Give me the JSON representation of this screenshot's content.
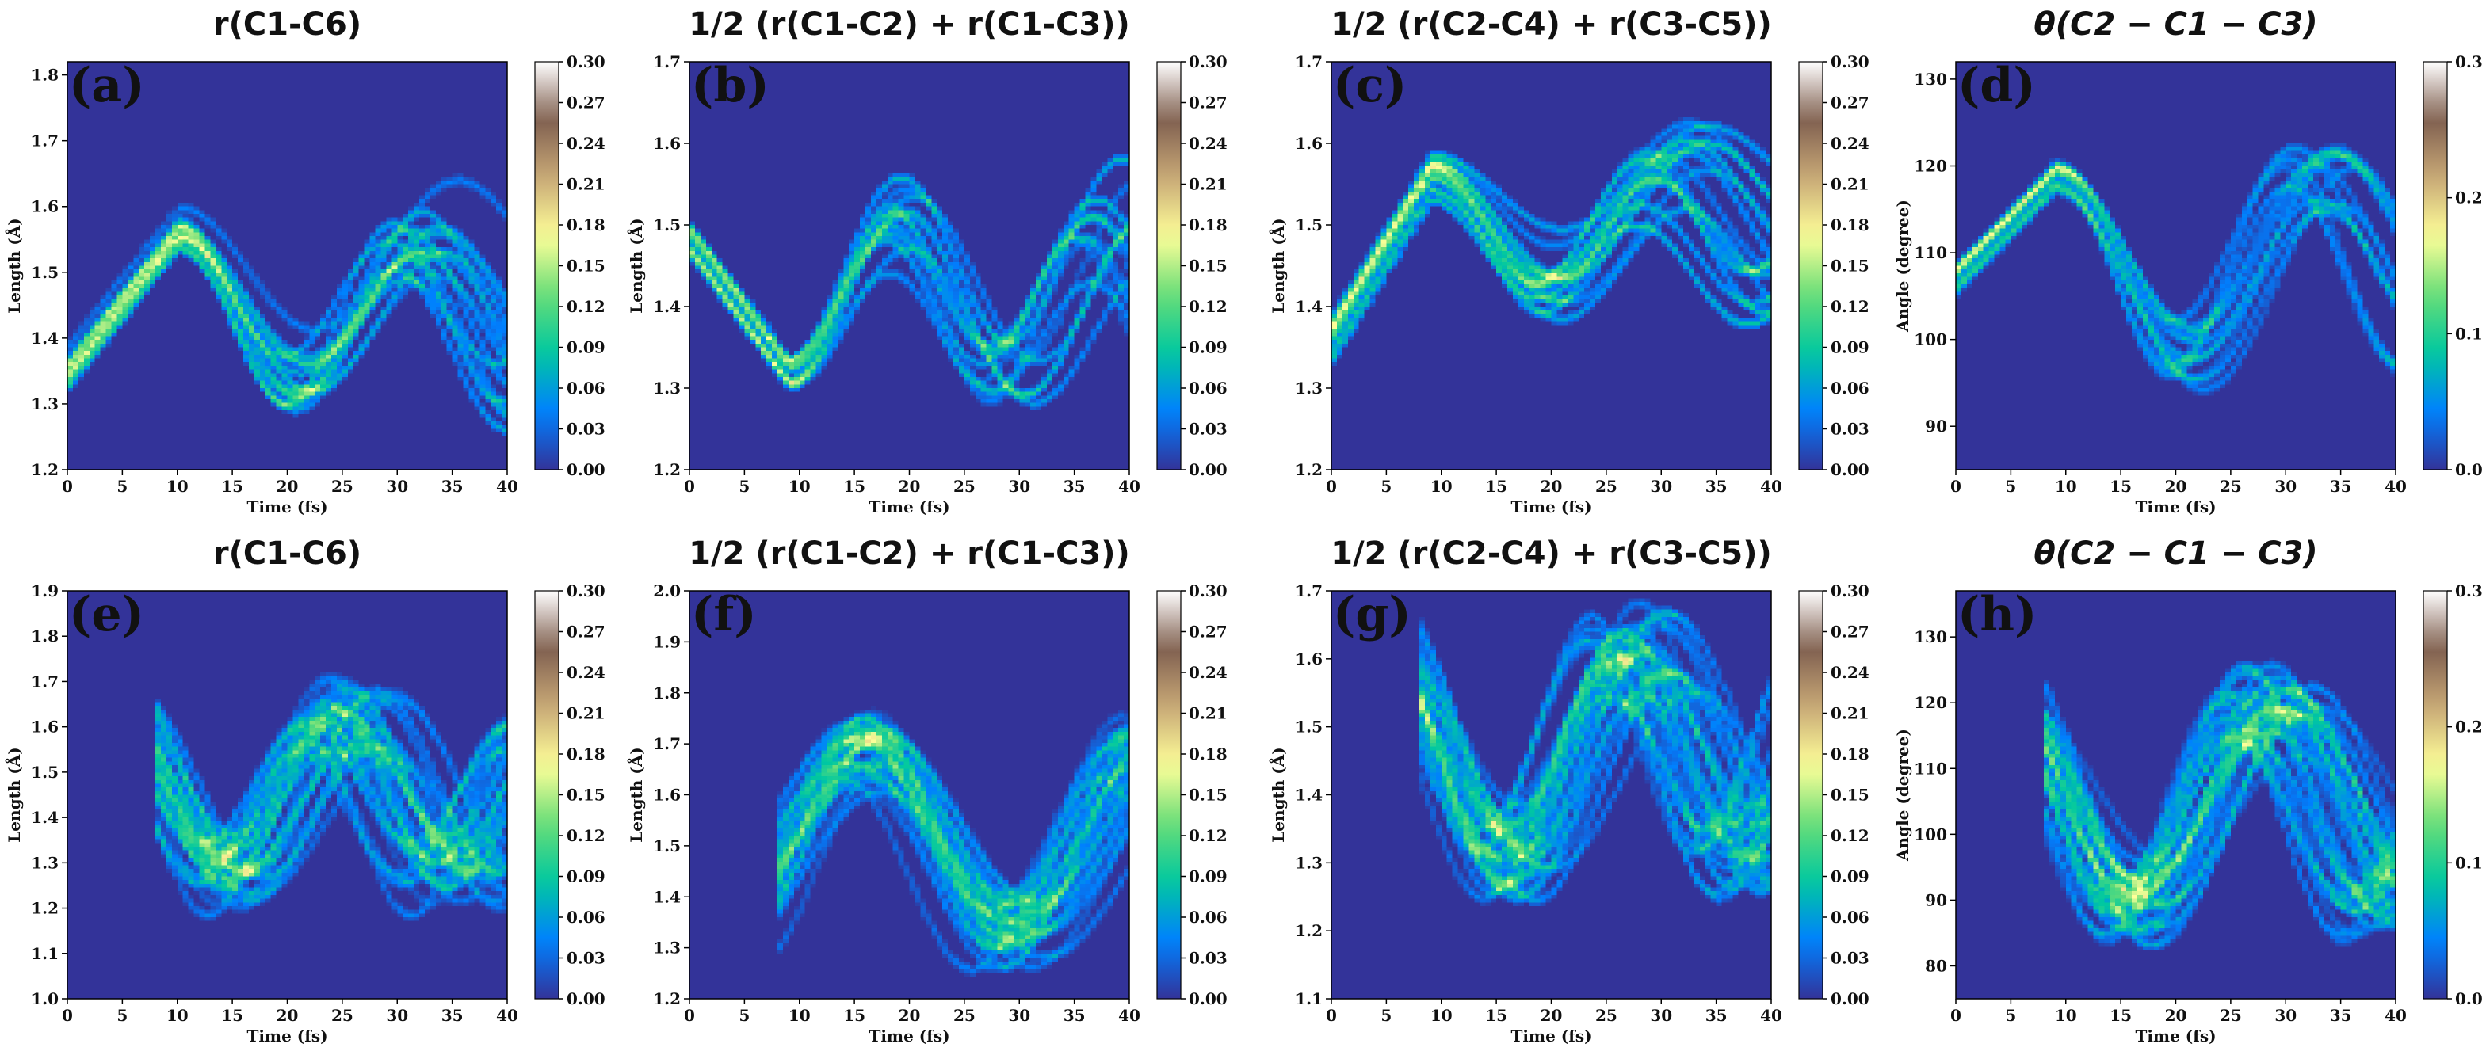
{
  "colormap": {
    "name": "terrain",
    "stops": [
      "#333399",
      "#0080ff",
      "#00c8a0",
      "#66dd77",
      "#ffff99",
      "#c9a977",
      "#806050",
      "#ffffff"
    ],
    "background": "#333399"
  },
  "chart_data": [
    {
      "id": "a",
      "type": "heatmap",
      "title": "r(C1-C6)",
      "label": "(a)",
      "xlabel": "Time (fs)",
      "ylabel": "Length (Å)",
      "xlim": [
        0,
        40
      ],
      "ylim": [
        1.2,
        1.82
      ],
      "xticks": [
        0,
        5,
        10,
        15,
        20,
        25,
        30,
        35,
        40
      ],
      "xtick_labels": [
        "0",
        "5",
        "10",
        "15",
        "20",
        "25",
        "30",
        "35",
        "40"
      ],
      "yticks": [
        1.2,
        1.3,
        1.4,
        1.5,
        1.6,
        1.7,
        1.8
      ],
      "ytick_labels": [
        "1.2",
        "1.3",
        "1.4",
        "1.5",
        "1.6",
        "1.7",
        "1.8"
      ],
      "colorbar": {
        "min": 0,
        "max": 0.3,
        "ticks": [
          0,
          0.03,
          0.06,
          0.09,
          0.12,
          0.15,
          0.18,
          0.21,
          0.24,
          0.27,
          0.3
        ],
        "tick_labels": [
          "0.00",
          "0.03",
          "0.06",
          "0.09",
          "0.12",
          "0.15",
          "0.18",
          "0.21",
          "0.24",
          "0.27",
          "0.30"
        ]
      },
      "gen": {
        "t0": 0,
        "n": 14,
        "base": 1.36,
        "spread": 0.09,
        "amp": 0.11,
        "period": 22,
        "phase": -5.5,
        "ramp": 0.021,
        "rampEnd": 10,
        "dens": 3.2
      }
    },
    {
      "id": "b",
      "type": "heatmap",
      "title": "1/2 (r(C1-C2) + r(C1-C3))",
      "label": "(b)",
      "xlabel": "Time (fs)",
      "ylabel": "Length (Å)",
      "xlim": [
        0,
        40
      ],
      "ylim": [
        1.2,
        1.7
      ],
      "xticks": [
        0,
        5,
        10,
        15,
        20,
        25,
        30,
        35,
        40
      ],
      "xtick_labels": [
        "0",
        "5",
        "10",
        "15",
        "20",
        "25",
        "30",
        "35",
        "40"
      ],
      "yticks": [
        1.2,
        1.3,
        1.4,
        1.5,
        1.6,
        1.7
      ],
      "ytick_labels": [
        "1.2",
        "1.3",
        "1.4",
        "1.5",
        "1.6",
        "1.7"
      ],
      "colorbar": {
        "min": 0,
        "max": 0.3,
        "ticks": [
          0,
          0.03,
          0.06,
          0.09,
          0.12,
          0.15,
          0.18,
          0.21,
          0.24,
          0.27,
          0.3
        ],
        "tick_labels": [
          "0.00",
          "0.03",
          "0.06",
          "0.09",
          "0.12",
          "0.15",
          "0.18",
          "0.21",
          "0.24",
          "0.27",
          "0.30"
        ]
      },
      "gen": {
        "t0": 0,
        "n": 14,
        "base": 1.48,
        "spread": 0.05,
        "amp": 0.09,
        "period": 20,
        "phase": 0,
        "ramp": -0.018,
        "rampEnd": 9,
        "dens": 4.5
      }
    },
    {
      "id": "c",
      "type": "heatmap",
      "title": "1/2 (r(C2-C4) + r(C3-C5))",
      "label": "(c)",
      "xlabel": "Time (fs)",
      "ylabel": "Length (Å)",
      "xlim": [
        0,
        40
      ],
      "ylim": [
        1.2,
        1.7
      ],
      "xticks": [
        0,
        5,
        10,
        15,
        20,
        25,
        30,
        35,
        40
      ],
      "xtick_labels": [
        "0",
        "5",
        "10",
        "15",
        "20",
        "25",
        "30",
        "35",
        "40"
      ],
      "yticks": [
        1.2,
        1.3,
        1.4,
        1.5,
        1.6,
        1.7
      ],
      "ytick_labels": [
        "1.2",
        "1.3",
        "1.4",
        "1.5",
        "1.6",
        "1.7"
      ],
      "colorbar": {
        "min": 0,
        "max": 0.3,
        "ticks": [
          0,
          0.03,
          0.06,
          0.09,
          0.12,
          0.15,
          0.18,
          0.21,
          0.24,
          0.27,
          0.3
        ],
        "tick_labels": [
          "0.00",
          "0.03",
          "0.06",
          "0.09",
          "0.12",
          "0.15",
          "0.18",
          "0.21",
          "0.24",
          "0.27",
          "0.30"
        ]
      },
      "gen": {
        "t0": 0,
        "n": 14,
        "base": 1.36,
        "spread": 0.07,
        "amp": 0.07,
        "period": 22,
        "phase": -5,
        "ramp": 0.022,
        "rampEnd": 9,
        "dens": 3.6
      }
    },
    {
      "id": "d",
      "type": "heatmap",
      "title": "θ(C2 − C1 − C3)",
      "label": "(d)",
      "xlabel": "Time (fs)",
      "ylabel": "Angle (degree)",
      "xlim": [
        0,
        40
      ],
      "ylim": [
        85,
        132
      ],
      "xticks": [
        0,
        5,
        10,
        15,
        20,
        25,
        30,
        35,
        40
      ],
      "xtick_labels": [
        "0",
        "5",
        "10",
        "15",
        "20",
        "25",
        "30",
        "35",
        "40"
      ],
      "yticks": [
        90,
        100,
        110,
        120,
        130
      ],
      "ytick_labels": [
        "90",
        "100",
        "110",
        "120",
        "130"
      ],
      "colorbar": {
        "min": 0,
        "max": 0.3,
        "ticks": [
          0,
          0.1,
          0.2,
          0.3
        ],
        "tick_labels": [
          "0.0",
          "0.1",
          "0.2",
          "0.3"
        ]
      },
      "gen": {
        "t0": 0,
        "n": 14,
        "base": 107,
        "spread": 5,
        "amp": 11,
        "period": 24,
        "phase": -6,
        "ramp": 1.3,
        "rampEnd": 9,
        "dens": 3.2
      }
    },
    {
      "id": "e",
      "type": "heatmap",
      "title": "r(C1-C6)",
      "label": "(e)",
      "xlabel": "Time (fs)",
      "ylabel": "Length (Å)",
      "xlim": [
        0,
        40
      ],
      "ylim": [
        1.0,
        1.9
      ],
      "xticks": [
        0,
        5,
        10,
        15,
        20,
        25,
        30,
        35,
        40
      ],
      "xtick_labels": [
        "0",
        "5",
        "10",
        "15",
        "20",
        "25",
        "30",
        "35",
        "40"
      ],
      "yticks": [
        1.0,
        1.1,
        1.2,
        1.3,
        1.4,
        1.5,
        1.6,
        1.7,
        1.8,
        1.9
      ],
      "ytick_labels": [
        "1.0",
        "1.1",
        "1.2",
        "1.3",
        "1.4",
        "1.5",
        "1.6",
        "1.7",
        "1.8",
        "1.9"
      ],
      "colorbar": {
        "min": 0,
        "max": 0.3,
        "ticks": [
          0,
          0.03,
          0.06,
          0.09,
          0.12,
          0.15,
          0.18,
          0.21,
          0.24,
          0.27,
          0.3
        ],
        "tick_labels": [
          "0.00",
          "0.03",
          "0.06",
          "0.09",
          "0.12",
          "0.15",
          "0.18",
          "0.21",
          "0.24",
          "0.27",
          "0.30"
        ]
      },
      "gen": {
        "t0": 8,
        "n": 40,
        "base": 1.44,
        "spread": 0.07,
        "amp": 0.17,
        "period": 21,
        "phase": 4.5,
        "ramp": 0,
        "rampEnd": 0,
        "dens": 1.2
      }
    },
    {
      "id": "f",
      "type": "heatmap",
      "title": "1/2 (r(C1-C2) + r(C1-C3))",
      "label": "(f)",
      "xlabel": "Time (fs)",
      "ylabel": "Length (Å)",
      "xlim": [
        0,
        40
      ],
      "ylim": [
        1.2,
        2.0
      ],
      "xticks": [
        0,
        5,
        10,
        15,
        20,
        25,
        30,
        35,
        40
      ],
      "xtick_labels": [
        "0",
        "5",
        "10",
        "15",
        "20",
        "25",
        "30",
        "35",
        "40"
      ],
      "yticks": [
        1.2,
        1.3,
        1.4,
        1.5,
        1.6,
        1.7,
        1.8,
        1.9,
        2.0
      ],
      "ytick_labels": [
        "1.2",
        "1.3",
        "1.4",
        "1.5",
        "1.6",
        "1.7",
        "1.8",
        "1.9",
        "2.0"
      ],
      "colorbar": {
        "min": 0,
        "max": 0.3,
        "ticks": [
          0,
          0.03,
          0.06,
          0.09,
          0.12,
          0.15,
          0.18,
          0.21,
          0.24,
          0.27,
          0.3
        ],
        "tick_labels": [
          "0.00",
          "0.03",
          "0.06",
          "0.09",
          "0.12",
          "0.15",
          "0.18",
          "0.21",
          "0.24",
          "0.27",
          "0.30"
        ]
      },
      "gen": {
        "t0": 8,
        "n": 40,
        "base": 1.5,
        "spread": 0.06,
        "amp": 0.18,
        "period": 26,
        "phase": 16,
        "ramp": 0,
        "rampEnd": 0,
        "dens": 1.2
      }
    },
    {
      "id": "g",
      "type": "heatmap",
      "title": "1/2 (r(C2-C4) + r(C3-C5))",
      "label": "(g)",
      "xlabel": "Time (fs)",
      "ylabel": "Length (Å)",
      "xlim": [
        0,
        40
      ],
      "ylim": [
        1.1,
        1.7
      ],
      "xticks": [
        0,
        5,
        10,
        15,
        20,
        25,
        30,
        35,
        40
      ],
      "xtick_labels": [
        "0",
        "5",
        "10",
        "15",
        "20",
        "25",
        "30",
        "35",
        "40"
      ],
      "yticks": [
        1.1,
        1.2,
        1.3,
        1.4,
        1.5,
        1.6,
        1.7
      ],
      "ytick_labels": [
        "1.1",
        "1.2",
        "1.3",
        "1.4",
        "1.5",
        "1.6",
        "1.7"
      ],
      "colorbar": {
        "min": 0,
        "max": 0.3,
        "ticks": [
          0,
          0.03,
          0.06,
          0.09,
          0.12,
          0.15,
          0.18,
          0.21,
          0.24,
          0.27,
          0.3
        ],
        "tick_labels": [
          "0.00",
          "0.03",
          "0.06",
          "0.09",
          "0.12",
          "0.15",
          "0.18",
          "0.21",
          "0.24",
          "0.27",
          "0.30"
        ]
      },
      "gen": {
        "t0": 8,
        "n": 40,
        "base": 1.45,
        "spread": 0.06,
        "amp": 0.15,
        "period": 23,
        "phase": 5,
        "ramp": 0,
        "rampEnd": 0,
        "dens": 1.2
      }
    },
    {
      "id": "h",
      "type": "heatmap",
      "title": "θ(C2 − C1 − C3)",
      "label": "(h)",
      "xlabel": "Time (fs)",
      "ylabel": "Angle (degree)",
      "xlim": [
        0,
        40
      ],
      "ylim": [
        75,
        137
      ],
      "xticks": [
        0,
        5,
        10,
        15,
        20,
        25,
        30,
        35,
        40
      ],
      "xtick_labels": [
        "0",
        "5",
        "10",
        "15",
        "20",
        "25",
        "30",
        "35",
        "40"
      ],
      "yticks": [
        80,
        90,
        100,
        110,
        120,
        130
      ],
      "ytick_labels": [
        "80",
        "90",
        "100",
        "110",
        "120",
        "130"
      ],
      "colorbar": {
        "min": 0,
        "max": 0.3,
        "ticks": [
          0,
          0.1,
          0.2,
          0.3
        ],
        "tick_labels": [
          "0.0",
          "0.1",
          "0.2",
          "0.3"
        ]
      },
      "gen": {
        "t0": 8,
        "n": 40,
        "base": 104,
        "spread": 4,
        "amp": 15,
        "period": 24,
        "phase": 4,
        "ramp": 0,
        "rampEnd": 0,
        "dens": 1.2
      }
    }
  ]
}
